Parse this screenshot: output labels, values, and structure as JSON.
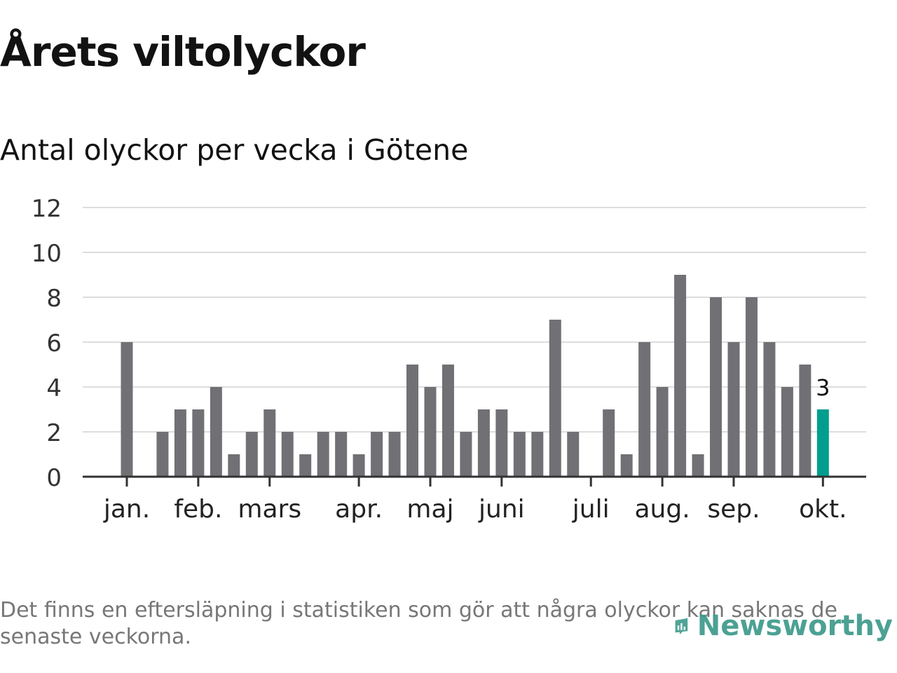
{
  "title": "Årets viltolyckor",
  "subtitle": "Antal olyckor per vecka i Götene",
  "chart_data": {
    "type": "bar",
    "ylim": [
      0,
      12
    ],
    "yticks": [
      0,
      2,
      4,
      6,
      8,
      10,
      12
    ],
    "grid": true,
    "week_start_x": 1,
    "values": [
      6,
      null,
      2,
      3,
      3,
      4,
      1,
      2,
      3,
      2,
      1,
      2,
      2,
      1,
      2,
      2,
      5,
      4,
      5,
      2,
      3,
      3,
      2,
      2,
      7,
      2,
      null,
      3,
      1,
      6,
      4,
      9,
      1,
      8,
      6,
      8,
      6,
      4,
      5,
      3
    ],
    "month_ticks": [
      {
        "label": "jan.",
        "week": 1
      },
      {
        "label": "feb.",
        "week": 5
      },
      {
        "label": "mars",
        "week": 9
      },
      {
        "label": "apr.",
        "week": 14
      },
      {
        "label": "maj",
        "week": 18
      },
      {
        "label": "juni",
        "week": 22
      },
      {
        "label": "juli",
        "week": 27
      },
      {
        "label": "aug.",
        "week": 31
      },
      {
        "label": "sep.",
        "week": 35
      },
      {
        "label": "okt.",
        "week": 40
      }
    ],
    "highlight": {
      "week": 40,
      "value": 3,
      "label": "3"
    },
    "colors": {
      "bar": "#717075",
      "highlight": "#009e8e",
      "grid": "#dddddd",
      "axis": "#333333"
    }
  },
  "footnote": "Det finns en eftersläpning i statistiken som gör att några olyckor kan saknas de senaste veckorna.",
  "logo": {
    "text": "Newsworthy",
    "icon": "newsworthy-logo-icon",
    "color": "#3d9a8c"
  }
}
